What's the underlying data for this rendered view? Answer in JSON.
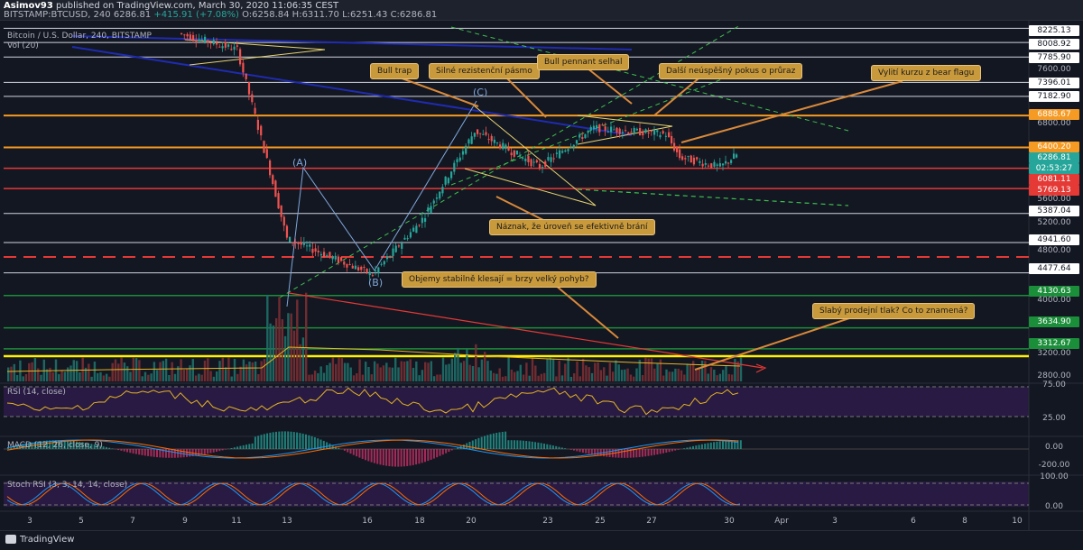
{
  "header": {
    "author": "Asimov93",
    "published": "published on TradingView.com, March 30, 2020 11:06:35 CEST",
    "symbol": "BITSTAMP:BTCUSD, 240",
    "last": "6286.81",
    "change": "+415.91 (+7.08%)",
    "ohlc": "O:6258.84 H:6311.70 L:6251.43 C:6286.81"
  },
  "pane_labels": {
    "main": "Bitcoin / U.S. Dollar, 240, BITSTAMP",
    "vol": "Vol (20)",
    "rsi": "RSI (14, close)",
    "macd": "MACD (12, 26, close, 9)",
    "stoch": "Stoch RSI (3, 3, 14, 14, close)"
  },
  "wave_labels": {
    "a": "(A)",
    "b": "(B)",
    "c": "(C)"
  },
  "annotations": [
    "Bull trap",
    "Silné rezistenční pásmo",
    "Bull pennant selhal",
    "Další neúspěšný pokus o průraz",
    "Vylití kurzu z bear flagu",
    "Náznak, že úroveň se efektivně brání",
    "Objemy stabilně klesají = brzy velký pohyb?",
    "Slabý prodejní tlak? Co to znamená?"
  ],
  "price_axis": [
    "8225.13",
    "8008.92",
    "7785.90",
    "7600.00",
    "7396.01",
    "7182.90",
    "6888.67",
    "6800.00",
    "6400.20",
    "6286.81",
    "02:53:27",
    "6081.11",
    "5769.13",
    "5600.00",
    "5387.04",
    "5200.00",
    "4941.60",
    "4800.00",
    "4477.64",
    "4130.63",
    "4000.00",
    "3634.90",
    "3312.67",
    "3200.00",
    "2800.00"
  ],
  "rsi_axis": [
    "75.00",
    "25.00"
  ],
  "macd_axis": [
    "0.00",
    "-200.00"
  ],
  "stoch_axis": [
    "100.00",
    "0.00"
  ],
  "x_ticks": [
    "3",
    "5",
    "7",
    "9",
    "11",
    "13",
    "16",
    "18",
    "20",
    "23",
    "25",
    "27",
    "30",
    "Apr",
    "3",
    "6",
    "8",
    "10"
  ],
  "footer": {
    "brand": "TradingView"
  },
  "colors": {
    "bg": "#131722",
    "up": "#26a69a",
    "down": "#ef5350",
    "note": "#c99a3c",
    "orange": "#f59a23",
    "red": "#e53935",
    "green": "#1b8e3a",
    "yellow": "#fff200",
    "blue": "#1f2bb0"
  },
  "chart_data": {
    "type": "line",
    "title": "Bitcoin / U.S. Dollar, 240, BITSTAMP",
    "x": [
      "Mar 8",
      "Mar 11",
      "Mar 12",
      "Mar 13",
      "Mar 16",
      "Mar 18",
      "Mar 20",
      "Mar 23",
      "Mar 25",
      "Mar 27",
      "Mar 28",
      "Mar 29",
      "Mar 30"
    ],
    "series": [
      {
        "values": [
          8150,
          7900,
          6200,
          5000,
          4450,
          5300,
          6650,
          6100,
          6700,
          6600,
          6250,
          6100,
          6286.81
        ]
      }
    ],
    "horizontal_levels": [
      8225.13,
      8008.92,
      7785.9,
      7396.01,
      7182.9,
      6888.67,
      6400.2,
      6081.11,
      5769.13,
      5387.04,
      4941.6,
      4477.64,
      4130.63,
      3634.9,
      3312.67
    ],
    "ylim": [
      2800,
      8300
    ],
    "legend": "none",
    "grid": false
  }
}
